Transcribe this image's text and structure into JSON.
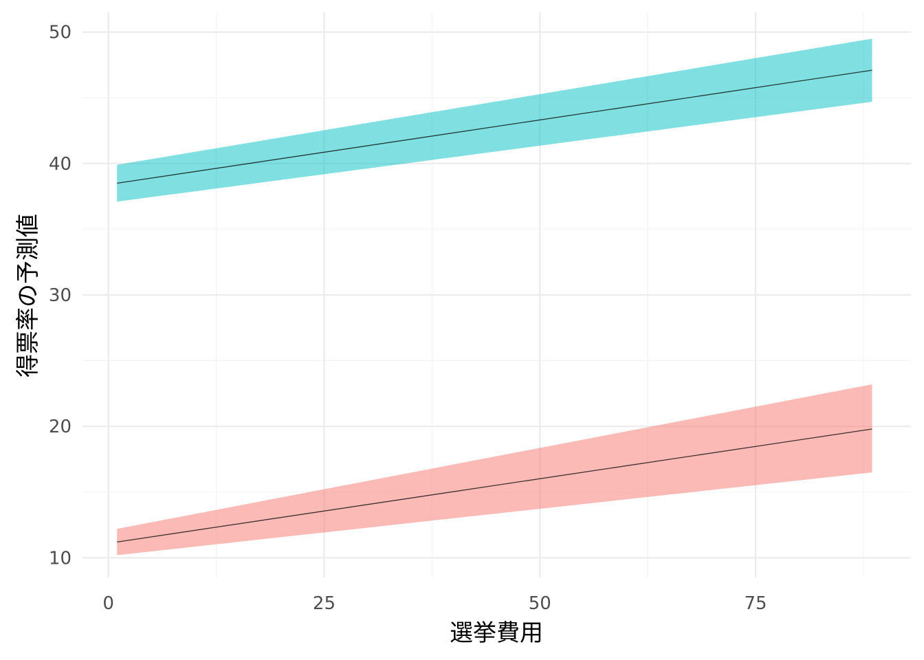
{
  "chart_data": {
    "type": "area",
    "title": "",
    "xlabel": "選挙費用",
    "ylabel": "得票率の予測値",
    "xlim": [
      -3,
      93
    ],
    "ylim": [
      8.5,
      51.5
    ],
    "x_ticks": [
      0,
      25,
      50,
      75
    ],
    "y_ticks": [
      10,
      20,
      30,
      40,
      50
    ],
    "grid": true,
    "legend": "none",
    "series": [
      {
        "color": "#F8766D",
        "x": [
          1,
          88.5
        ],
        "y": [
          11.2,
          19.8
        ],
        "lower": [
          10.2,
          16.5
        ],
        "upper": [
          12.2,
          23.2
        ]
      },
      {
        "color": "#00BFC4",
        "x": [
          1,
          88.5
        ],
        "y": [
          38.5,
          47.1
        ],
        "lower": [
          37.1,
          44.7
        ],
        "upper": [
          39.9,
          49.5
        ]
      }
    ]
  }
}
